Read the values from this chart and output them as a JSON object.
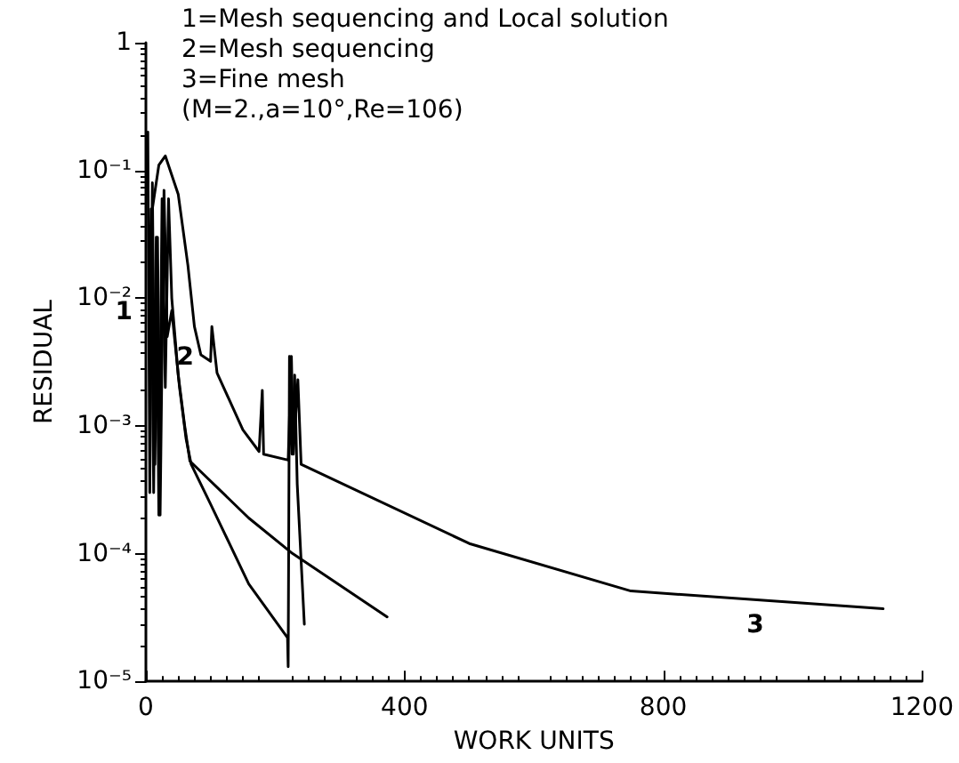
{
  "chart_data": {
    "type": "line",
    "xlabel": "WORK UNITS",
    "ylabel": "RESIDUAL",
    "annotations": [
      "1=Mesh sequencing and Local solution",
      "2=Mesh sequencing",
      "3=Fine mesh",
      "(M=2.,a=10°,Re=106)"
    ],
    "series": [
      {
        "name": "1",
        "color": "#000000",
        "x": [
          3,
          6,
          10,
          14,
          18,
          22,
          28,
          33,
          40,
          52,
          62,
          70,
          99,
          159,
          219,
          220,
          222,
          226,
          230,
          234,
          245
        ],
        "values": [
          0.2,
          0.0003,
          0.08,
          0.0005,
          0.03,
          0.0002,
          0.07,
          0.005,
          0.008,
          0.002,
          0.0008,
          0.0005,
          0.00025,
          5.8e-05,
          2.2e-05,
          1.3e-05,
          0.0035,
          0.0006,
          0.0025,
          0.00035,
          2.8e-05
        ]
      },
      {
        "name": "2",
        "color": "#000000",
        "x": [
          5,
          8,
          12,
          16,
          20,
          25,
          30,
          35,
          40,
          50,
          60,
          68,
          159,
          227,
          373
        ],
        "values": [
          0.005,
          0.05,
          0.0003,
          0.03,
          0.0002,
          0.06,
          0.002,
          0.06,
          0.01,
          0.0025,
          0.001,
          0.00053,
          0.00019,
          0.0001,
          3.2e-05
        ]
      },
      {
        "name": "3",
        "color": "#000000",
        "x": [
          10,
          20,
          30,
          50,
          65,
          75,
          85,
          100,
          102,
          110,
          150,
          175,
          180,
          182,
          220,
          225,
          228,
          235,
          240,
          500,
          750,
          1140
        ],
        "values": [
          0.05,
          0.11,
          0.13,
          0.065,
          0.018,
          0.006,
          0.0036,
          0.0032,
          0.006,
          0.0026,
          0.00093,
          0.00063,
          0.0019,
          0.0006,
          0.00054,
          0.0035,
          0.0006,
          0.0023,
          0.0005,
          0.00012,
          5.1e-05,
          3.7e-05
        ]
      }
    ],
    "xlim": [
      0,
      1200
    ],
    "xticks": [
      0,
      400,
      800,
      1200
    ],
    "ylim": [
      1e-05,
      1
    ],
    "yticks": [
      {
        "value": 1,
        "label": "1"
      },
      {
        "value": 0.1,
        "label": "10⁻¹"
      },
      {
        "value": 0.01,
        "label": "10⁻²"
      },
      {
        "value": 0.001,
        "label": "10⁻³"
      },
      {
        "value": 0.0001,
        "label": "10⁻⁴"
      },
      {
        "value": 1e-05,
        "label": "10⁻⁵"
      }
    ],
    "log": "y",
    "grid": false,
    "marker": "none",
    "line_style": "solid"
  }
}
